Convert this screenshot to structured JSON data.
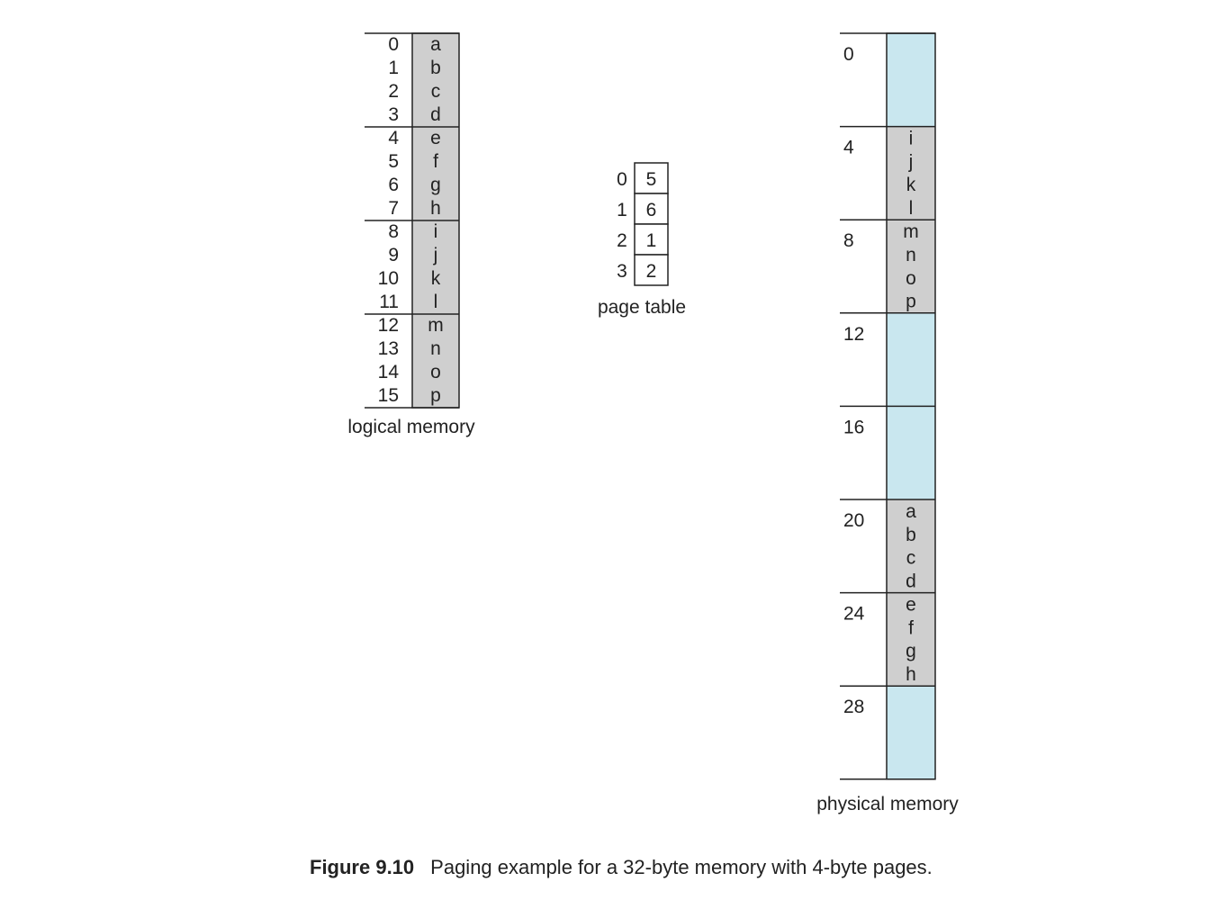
{
  "logical_memory": {
    "label": "logical memory",
    "addresses": [
      "0",
      "1",
      "2",
      "3",
      "4",
      "5",
      "6",
      "7",
      "8",
      "9",
      "10",
      "11",
      "12",
      "13",
      "14",
      "15"
    ],
    "contents": [
      "a",
      "b",
      "c",
      "d",
      "e",
      "f",
      "g",
      "h",
      "i",
      "j",
      "k",
      "l",
      "m",
      "n",
      "o",
      "p"
    ]
  },
  "page_table": {
    "label": "page table",
    "indices": [
      "0",
      "1",
      "2",
      "3"
    ],
    "frames": [
      "5",
      "6",
      "1",
      "2"
    ]
  },
  "physical_memory": {
    "label": "physical memory",
    "frame_addresses": [
      "0",
      "4",
      "8",
      "12",
      "16",
      "20",
      "24",
      "28"
    ],
    "frames": [
      {
        "contents": []
      },
      {
        "contents": [
          "i",
          "j",
          "k",
          "l"
        ]
      },
      {
        "contents": [
          "m",
          "n",
          "o",
          "p"
        ]
      },
      {
        "contents": []
      },
      {
        "contents": []
      },
      {
        "contents": [
          "a",
          "b",
          "c",
          "d"
        ]
      },
      {
        "contents": [
          "e",
          "f",
          "g",
          "h"
        ]
      },
      {
        "contents": []
      }
    ]
  },
  "colors": {
    "used_frame": "#cfcfcf",
    "free_frame": "#c9e7ef",
    "line": "#222222"
  },
  "caption": {
    "label": "Figure 9.10",
    "text": "Paging example for a 32-byte memory with 4-byte pages."
  }
}
